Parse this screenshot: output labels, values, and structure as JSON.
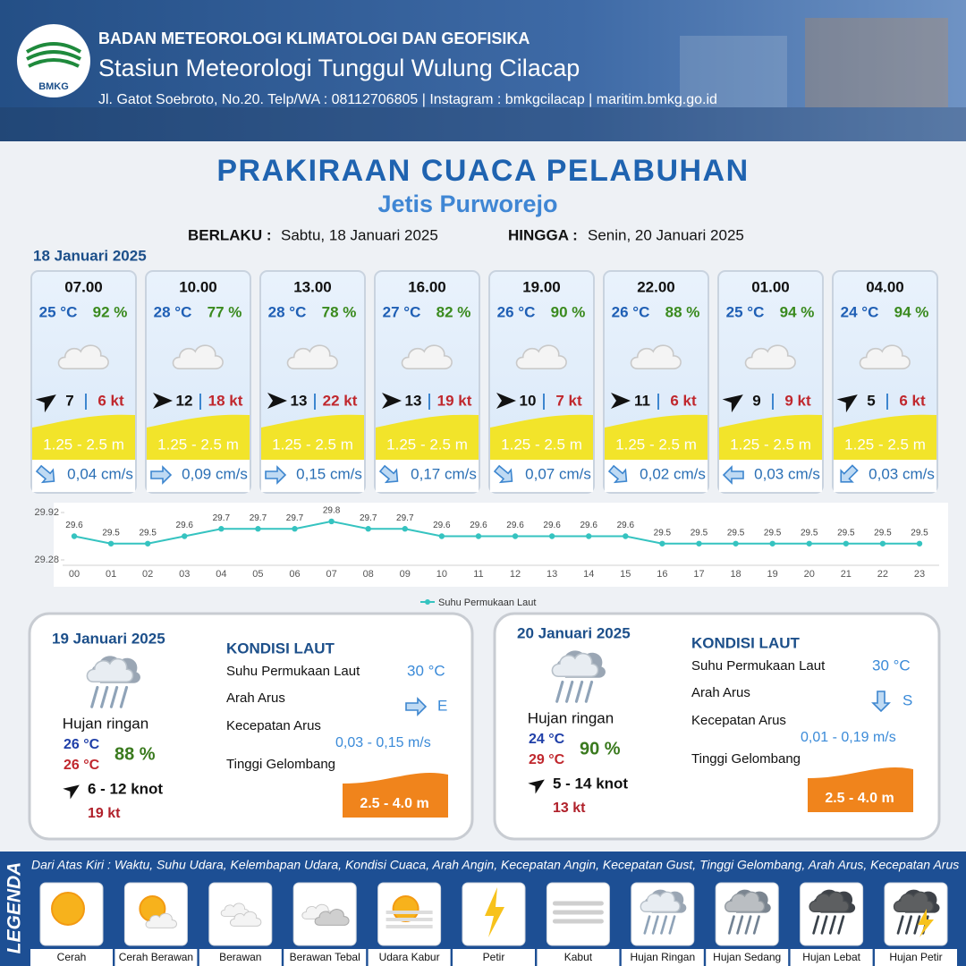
{
  "header": {
    "logo": "BMKG",
    "org": "BADAN METEOROLOGI KLIMATOLOGI DAN GEOFISIKA",
    "station": "Stasiun Meteorologi Tunggul Wulung Cilacap",
    "address": "Jl. Gatot Soebroto, No.20. Telp/WA : 08112706805 | Instagram : bmkgcilacap | maritim.bmkg.go.id"
  },
  "title": "PRAKIRAAN CUACA PELABUHAN",
  "location": "Jetis Purworejo",
  "validity": {
    "from_label": "BERLAKU :",
    "from": "Sabtu, 18 Januari 2025",
    "to_label": "HINGGA :",
    "to": "Senin, 20 Januari 2025"
  },
  "hourly_date": "18 Januari 2025",
  "hourly": [
    {
      "time": "07.00",
      "temp": "25 °C",
      "humidity": "92 %",
      "wind": "7",
      "gust": "6 kt",
      "wave": "1.25 - 2.5 m",
      "current": "0,04 cm/s"
    },
    {
      "time": "10.00",
      "temp": "28 °C",
      "humidity": "77 %",
      "wind": "12",
      "gust": "18 kt",
      "wave": "1.25 - 2.5 m",
      "current": "0,09 cm/s"
    },
    {
      "time": "13.00",
      "temp": "28 °C",
      "humidity": "78 %",
      "wind": "13",
      "gust": "22 kt",
      "wave": "1.25 - 2.5 m",
      "current": "0,15 cm/s"
    },
    {
      "time": "16.00",
      "temp": "27 °C",
      "humidity": "82 %",
      "wind": "13",
      "gust": "19 kt",
      "wave": "1.25 - 2.5 m",
      "current": "0,17 cm/s"
    },
    {
      "time": "19.00",
      "temp": "26 °C",
      "humidity": "90 %",
      "wind": "10",
      "gust": "7 kt",
      "wave": "1.25 - 2.5 m",
      "current": "0,07 cm/s"
    },
    {
      "time": "22.00",
      "temp": "26 °C",
      "humidity": "88 %",
      "wind": "11",
      "gust": "6 kt",
      "wave": "1.25 - 2.5 m",
      "current": "0,02 cm/s"
    },
    {
      "time": "01.00",
      "temp": "25 °C",
      "humidity": "94 %",
      "wind": "9",
      "gust": "9 kt",
      "wave": "1.25 - 2.5 m",
      "current": "0,03 cm/s"
    },
    {
      "time": "04.00",
      "temp": "24 °C",
      "humidity": "94 %",
      "wind": "5",
      "gust": "6 kt",
      "wave": "1.25 - 2.5 m",
      "current": "0,03 cm/s"
    }
  ],
  "chart_data": {
    "type": "line",
    "categories": [
      "00",
      "01",
      "02",
      "03",
      "04",
      "05",
      "06",
      "07",
      "08",
      "09",
      "10",
      "11",
      "12",
      "13",
      "14",
      "15",
      "16",
      "17",
      "18",
      "19",
      "20",
      "21",
      "22",
      "23"
    ],
    "series": [
      {
        "name": "Suhu Permukaan Laut",
        "color": "#35c3c0",
        "values": [
          29.6,
          29.5,
          29.5,
          29.6,
          29.7,
          29.7,
          29.7,
          29.8,
          29.7,
          29.7,
          29.6,
          29.6,
          29.6,
          29.6,
          29.6,
          29.6,
          29.5,
          29.5,
          29.5,
          29.5,
          29.5,
          29.5,
          29.5,
          29.5
        ]
      }
    ],
    "ylim": [
      29.28,
      29.92
    ],
    "yticks": [
      29.28,
      29.92
    ],
    "legend": "bottom"
  },
  "days": [
    {
      "date": "19 Januari 2025",
      "weather": "Hujan ringan",
      "temp_min": "26 °C",
      "temp_max": "26 °C",
      "humidity": "88 %",
      "wind": "6 - 12 knot",
      "gust": "19 kt",
      "sea": {
        "heading": "KONDISI LAUT",
        "sst_label": "Suhu Permukaan Laut",
        "sst": "30 °C",
        "direction_label": "Arah Arus",
        "direction": "E",
        "speed_label": "Kecepatan Arus",
        "speed": "0,03 - 0,15 m/s",
        "wave_label": "Tinggi Gelombang",
        "wave": "2.5 - 4.0 m"
      }
    },
    {
      "date": "20 Januari 2025",
      "weather": "Hujan ringan",
      "temp_min": "24 °C",
      "temp_max": "29 °C",
      "humidity": "90 %",
      "wind": "5 - 14 knot",
      "gust": "13 kt",
      "sea": {
        "heading": "KONDISI LAUT",
        "sst_label": "Suhu Permukaan Laut",
        "sst": "30 °C",
        "direction_label": "Arah Arus",
        "direction": "S",
        "speed_label": "Kecepatan Arus",
        "speed": "0,01 - 0,19 m/s",
        "wave_label": "Tinggi Gelombang",
        "wave": "2.5 - 4.0 m"
      }
    }
  ],
  "legend": {
    "title": "LEGENDA",
    "description": "Dari Atas Kiri : Waktu, Suhu Udara, Kelembapan Udara, Kondisi Cuaca, Arah Angin, Kecepatan Angin, Kecepatan Gust, Tinggi Gelombang, Arah Arus, Kecepatan Arus",
    "items": [
      "Cerah",
      "Cerah Berawan",
      "Berawan",
      "Berawan Tebal",
      "Udara Kabur",
      "Petir",
      "Kabut",
      "Hujan Ringan",
      "Hujan Sedang",
      "Hujan Lebat",
      "Hujan Petir"
    ]
  }
}
